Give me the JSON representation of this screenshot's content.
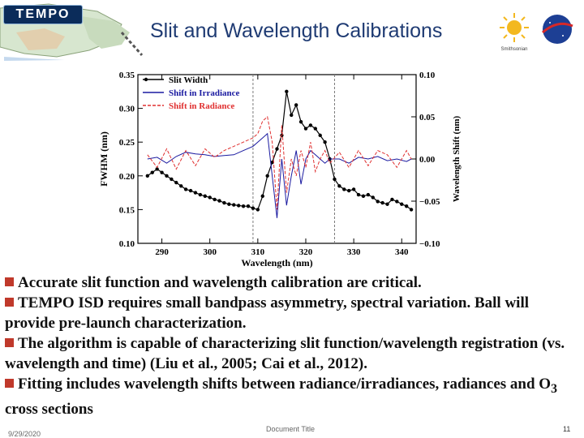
{
  "banner": {
    "logo_text": "TEMPO",
    "title": "Slit and Wavelength Calibrations",
    "sponsor_caption": "Smithsonian"
  },
  "colors": {
    "title": "#1f3b73",
    "bullet_marker": "#c0392b",
    "series_black": "#000000",
    "series_blue": "#1a1aa0",
    "series_red": "#e03030",
    "vline": "#7a7a7a"
  },
  "chart_data": {
    "type": "line",
    "xlabel": "Wavelength (nm)",
    "ylabel": "FWHM (nm)",
    "y2label": "Wavelength Shift (nm)",
    "xlim": [
      285,
      343
    ],
    "ylim": [
      0.1,
      0.35
    ],
    "y2lim": [
      -0.1,
      0.1
    ],
    "xticks": [
      290,
      300,
      310,
      320,
      330,
      340
    ],
    "yticks": [
      0.1,
      0.15,
      0.2,
      0.25,
      0.3,
      0.35
    ],
    "y2ticks": [
      -0.1,
      -0.05,
      0.0,
      0.05,
      0.1
    ],
    "xtick_labels": [
      "290",
      "300",
      "310",
      "320",
      "330",
      "340"
    ],
    "ytick_labels": [
      "0.10",
      "0.15",
      "0.20",
      "0.25",
      "0.30",
      "0.35"
    ],
    "y2tick_labels": [
      "−0.10",
      "−0.05",
      "0.00",
      "0.05",
      "0.10"
    ],
    "vlines": [
      309,
      326
    ],
    "legend_position": "top-left",
    "series": [
      {
        "name": "Slit Width",
        "axis": "left",
        "x": [
          287,
          288,
          289,
          290,
          291,
          292,
          293,
          294,
          295,
          296,
          297,
          298,
          299,
          300,
          301,
          302,
          303,
          304,
          305,
          306,
          307,
          308,
          309,
          310,
          311,
          312,
          313,
          314,
          315,
          316,
          317,
          318,
          319,
          320,
          321,
          322,
          323,
          324,
          325,
          326,
          327,
          328,
          329,
          330,
          331,
          332,
          333,
          334,
          335,
          336,
          337,
          338,
          339,
          340,
          341,
          342
        ],
        "y": [
          0.2,
          0.205,
          0.21,
          0.205,
          0.2,
          0.195,
          0.19,
          0.185,
          0.18,
          0.178,
          0.175,
          0.172,
          0.17,
          0.168,
          0.165,
          0.163,
          0.16,
          0.158,
          0.157,
          0.156,
          0.155,
          0.155,
          0.152,
          0.15,
          0.17,
          0.2,
          0.22,
          0.24,
          0.26,
          0.325,
          0.29,
          0.305,
          0.28,
          0.27,
          0.275,
          0.27,
          0.26,
          0.25,
          0.225,
          0.195,
          0.185,
          0.18,
          0.178,
          0.18,
          0.172,
          0.17,
          0.172,
          0.168,
          0.162,
          0.16,
          0.158,
          0.165,
          0.162,
          0.158,
          0.155,
          0.15
        ]
      },
      {
        "name": "Shift in Irradiance",
        "axis": "right",
        "x": [
          287,
          289,
          291,
          293,
          295,
          297,
          299,
          301,
          303,
          305,
          307,
          309,
          310,
          311,
          312,
          313,
          314,
          315,
          316,
          317,
          318,
          319,
          320,
          321,
          322,
          323,
          324,
          325,
          327,
          329,
          331,
          333,
          335,
          337,
          339,
          341,
          342
        ],
        "y": [
          0.0,
          0.002,
          -0.005,
          0.003,
          0.008,
          0.006,
          0.005,
          0.003,
          0.004,
          0.005,
          0.01,
          0.015,
          0.02,
          0.025,
          0.03,
          -0.02,
          -0.07,
          0.0,
          -0.055,
          -0.02,
          0.01,
          -0.03,
          0.0,
          0.01,
          0.005,
          0.0,
          -0.005,
          0.0,
          0.0,
          -0.005,
          0.002,
          0.0,
          0.003,
          -0.002,
          0.0,
          -0.003,
          0.0
        ]
      },
      {
        "name": "Shift in Radiance",
        "axis": "right",
        "x": [
          287,
          289,
          291,
          293,
          295,
          297,
          299,
          301,
          303,
          305,
          307,
          309,
          310,
          311,
          312,
          313,
          314,
          315,
          316,
          317,
          318,
          319,
          320,
          321,
          322,
          323,
          324,
          325,
          327,
          329,
          331,
          333,
          335,
          337,
          339,
          341,
          342
        ],
        "y": [
          0.005,
          -0.01,
          0.012,
          -0.012,
          0.01,
          -0.008,
          0.012,
          0.002,
          0.01,
          0.015,
          0.02,
          0.025,
          0.03,
          0.045,
          0.05,
          0.02,
          -0.06,
          0.04,
          -0.04,
          0.0,
          -0.02,
          0.01,
          -0.01,
          0.02,
          -0.015,
          0.0,
          0.01,
          -0.005,
          0.008,
          -0.01,
          0.01,
          -0.008,
          0.01,
          0.005,
          -0.01,
          0.01,
          0.0
        ]
      }
    ]
  },
  "bullets": [
    {
      "text": "Accurate slit function and wavelength calibration are critical."
    },
    {
      "text": "TEMPO ISD requires small bandpass asymmetry, spectral variation. Ball will provide pre-launch characterization."
    },
    {
      "text": "The algorithm is capable of characterizing slit function/wavelength registration (vs. wavelength and time) (Liu et al., 2005; Cai et al., 2012)."
    },
    {
      "text_before": "Fitting includes wavelength shifts between radiance/irradiances, radiances and O",
      "subscript": "3",
      "text_after": " cross sections"
    }
  ],
  "footer": {
    "date": "9/29/2020",
    "doc_title": "Document Title",
    "page": "11"
  }
}
